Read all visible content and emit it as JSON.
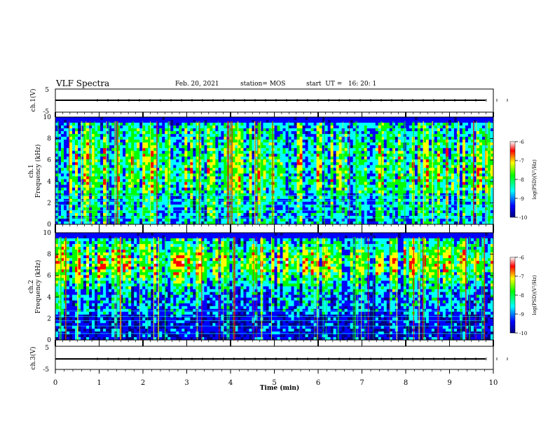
{
  "header": {
    "title": "VLF Spectra",
    "date": "Feb. 20, 2021",
    "station": "station= MOS",
    "start": "start  UT =   16: 20: 1"
  },
  "chart_data": [
    {
      "type": "line",
      "name": "ch1-waveform",
      "ylabel": "ch.1(V)",
      "ylim": [
        -5,
        5
      ],
      "yticks": [
        "5",
        "-5"
      ],
      "xlim": [
        0,
        10
      ],
      "baseline": -1.5
    },
    {
      "type": "heatmap",
      "name": "ch1-spectrogram",
      "ylabel_channel": "ch.1",
      "ylabel": "Frequency (kHz)",
      "ylim": [
        0,
        10
      ],
      "yticks": [
        0,
        2,
        4,
        6,
        8,
        10
      ],
      "xlim": [
        0,
        10
      ],
      "colorbar": {
        "label": "log(PSD)(V²/Hz)",
        "range": [
          -10,
          -6
        ],
        "ticks": [
          "-6",
          "-7",
          "-8",
          "-9",
          "-10"
        ]
      }
    },
    {
      "type": "heatmap",
      "name": "ch2-spectrogram",
      "ylabel_channel": "ch.2",
      "ylabel": "Frequency (kHz)",
      "ylim": [
        0,
        10
      ],
      "yticks": [
        0,
        2,
        4,
        6,
        8,
        10
      ],
      "xlim": [
        0,
        10
      ],
      "colorbar": {
        "label": "log(PSD)(V²/Hz)",
        "range": [
          -10,
          -6
        ],
        "ticks": [
          "-6",
          "-7",
          "-8",
          "-9",
          "-10"
        ]
      }
    },
    {
      "type": "line",
      "name": "ch3-waveform",
      "ylabel": "ch.3(V)",
      "ylim": [
        -5,
        5
      ],
      "yticks": [
        "5",
        "-5"
      ],
      "xlim": [
        0,
        10
      ],
      "baseline": -1.5
    }
  ],
  "xaxis": {
    "label": "Time  (min)",
    "ticks": [
      "0",
      "1",
      "2",
      "3",
      "4",
      "5",
      "6",
      "7",
      "8",
      "9",
      "10"
    ]
  },
  "colors": {
    "colormap": [
      "#000080",
      "#0000ff",
      "#00ffff",
      "#00ff00",
      "#ffff00",
      "#ff0000",
      "#ffffff"
    ]
  }
}
